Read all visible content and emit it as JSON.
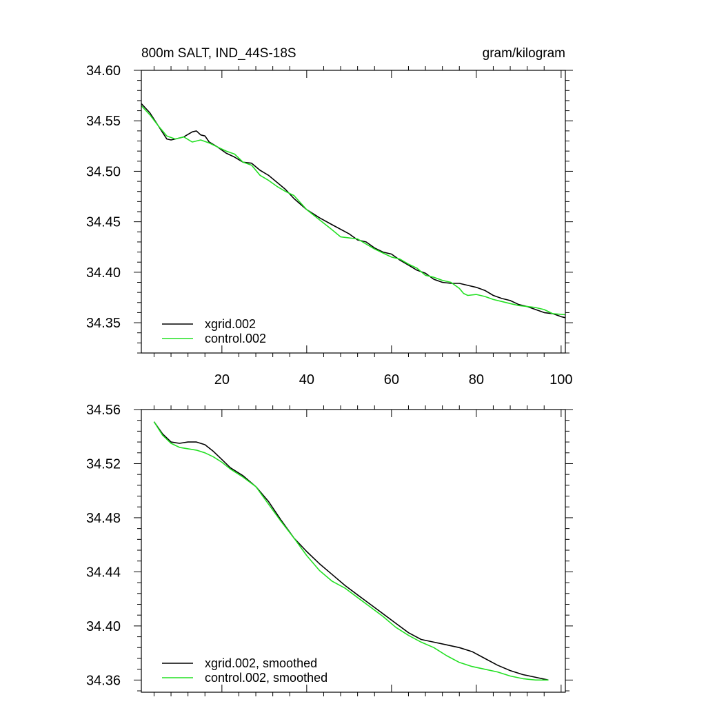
{
  "chart_data": [
    {
      "type": "line",
      "title": "800m SALT, IND_44S-18S",
      "subtitle": "gram/kilogram",
      "xlabel": "",
      "ylabel": "",
      "xlim": [
        1,
        101
      ],
      "ylim": [
        34.32,
        34.6
      ],
      "x_ticks": [
        20,
        40,
        60,
        80,
        100
      ],
      "x_tick_labels": [
        "20",
        "40",
        "60",
        "80",
        "100"
      ],
      "y_ticks": [
        34.35,
        34.4,
        34.45,
        34.5,
        34.55,
        34.6
      ],
      "y_tick_labels": [
        "34.35",
        "34.40",
        "34.45",
        "34.50",
        "34.55",
        "34.60"
      ],
      "legend_position": "bottom-left",
      "grid": false,
      "series": [
        {
          "name": "xgrid.002",
          "color": "#000000",
          "x": [
            1,
            3,
            5,
            7,
            8,
            9,
            11,
            13,
            14,
            15,
            16,
            17,
            19,
            21,
            23,
            25,
            27,
            29,
            31,
            33,
            35,
            37,
            40,
            43,
            46,
            50,
            52,
            54,
            56,
            58,
            60,
            62,
            64,
            66,
            68,
            70,
            72,
            74,
            76,
            78,
            80,
            82,
            84,
            86,
            88,
            90,
            92,
            94,
            96,
            98,
            100,
            101
          ],
          "y": [
            34.567,
            34.558,
            34.545,
            34.532,
            34.531,
            34.532,
            34.534,
            34.539,
            34.54,
            34.536,
            34.535,
            34.529,
            34.524,
            34.518,
            34.514,
            34.509,
            34.508,
            34.501,
            34.496,
            34.489,
            34.482,
            34.473,
            34.462,
            34.454,
            34.447,
            34.438,
            34.432,
            34.43,
            34.424,
            34.42,
            34.418,
            34.412,
            34.407,
            34.402,
            34.399,
            34.393,
            34.39,
            34.389,
            34.389,
            34.387,
            34.385,
            34.382,
            34.377,
            34.374,
            34.372,
            34.368,
            34.366,
            34.363,
            34.36,
            34.359,
            34.356,
            34.355
          ]
        },
        {
          "name": "control.002",
          "color": "#22e022",
          "x": [
            1,
            3,
            5,
            7,
            9,
            11,
            13,
            15,
            17,
            19,
            21,
            23,
            25,
            27,
            29,
            31,
            33,
            35,
            37,
            40,
            43,
            46,
            48,
            50,
            52,
            54,
            56,
            58,
            60,
            62,
            64,
            66,
            68,
            70,
            72,
            74,
            76,
            77,
            78,
            80,
            82,
            84,
            86,
            88,
            90,
            92,
            94,
            96,
            98,
            101
          ],
          "y": [
            34.565,
            34.556,
            34.545,
            34.535,
            34.532,
            34.534,
            34.529,
            34.531,
            34.528,
            34.524,
            34.52,
            34.517,
            34.509,
            34.506,
            34.496,
            34.491,
            34.485,
            34.48,
            34.476,
            34.462,
            34.452,
            34.442,
            34.435,
            34.434,
            34.433,
            34.428,
            34.423,
            34.419,
            34.415,
            34.413,
            34.408,
            34.404,
            34.397,
            34.395,
            34.392,
            34.39,
            34.384,
            34.379,
            34.377,
            34.378,
            34.376,
            34.373,
            34.371,
            34.369,
            34.367,
            34.366,
            34.365,
            34.363,
            34.359,
            34.358
          ]
        }
      ]
    },
    {
      "type": "line",
      "title": "",
      "xlabel": "",
      "ylabel": "",
      "xlim": [
        1,
        101
      ],
      "ylim": [
        34.351,
        34.56
      ],
      "x_ticks": [
        20,
        40,
        60,
        80,
        100
      ],
      "y_ticks": [
        34.36,
        34.4,
        34.44,
        34.48,
        34.52,
        34.56
      ],
      "y_tick_labels": [
        "34.36",
        "34.40",
        "34.44",
        "34.48",
        "34.52",
        "34.56"
      ],
      "legend_position": "bottom-left",
      "grid": false,
      "series": [
        {
          "name": "xgrid.002, smoothed",
          "color": "#000000",
          "x": [
            4,
            6,
            8,
            10,
            12,
            14,
            16,
            18,
            20,
            22,
            25,
            28,
            31,
            34,
            37,
            40,
            43,
            46,
            49,
            52,
            55,
            58,
            61,
            64,
            67,
            70,
            73,
            76,
            79,
            82,
            85,
            88,
            91,
            94,
            97
          ],
          "y": [
            34.551,
            34.542,
            34.536,
            34.535,
            34.536,
            34.536,
            34.534,
            34.529,
            34.523,
            34.517,
            34.511,
            34.503,
            34.492,
            34.478,
            34.465,
            34.455,
            34.446,
            34.438,
            34.43,
            34.423,
            34.416,
            34.409,
            34.402,
            34.395,
            34.39,
            34.388,
            34.386,
            34.384,
            34.381,
            34.376,
            34.371,
            34.367,
            34.364,
            34.362,
            34.36
          ]
        },
        {
          "name": "control.002, smoothed",
          "color": "#22e022",
          "x": [
            4,
            6,
            8,
            10,
            12,
            14,
            16,
            18,
            20,
            22,
            25,
            28,
            31,
            34,
            37,
            40,
            43,
            46,
            49,
            52,
            55,
            58,
            61,
            64,
            67,
            70,
            73,
            76,
            79,
            82,
            85,
            88,
            91,
            94,
            97
          ],
          "y": [
            34.551,
            34.541,
            34.535,
            34.532,
            34.531,
            34.53,
            34.528,
            34.525,
            34.521,
            34.516,
            34.51,
            34.503,
            34.49,
            34.477,
            34.465,
            34.452,
            34.441,
            34.433,
            34.428,
            34.421,
            34.414,
            34.407,
            34.399,
            34.393,
            34.388,
            34.384,
            34.378,
            34.373,
            34.37,
            34.368,
            34.366,
            34.363,
            34.361,
            34.36,
            34.36
          ]
        }
      ]
    }
  ]
}
